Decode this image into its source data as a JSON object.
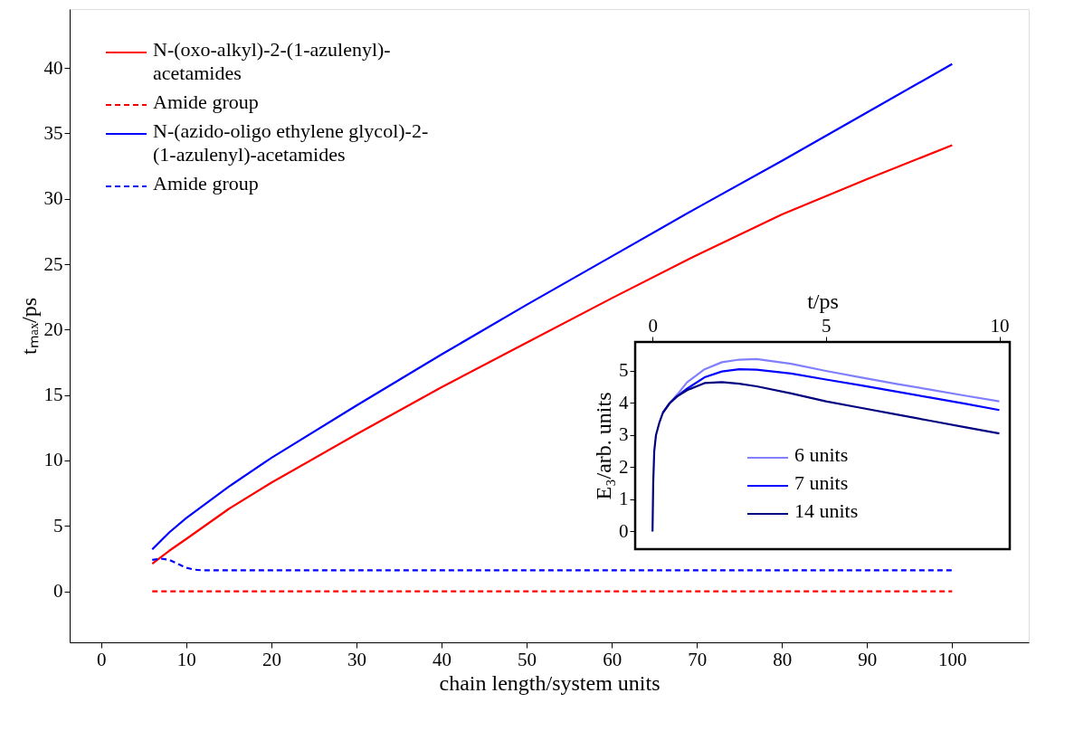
{
  "chart_data": [
    {
      "type": "line",
      "xlabel": "chain length/system units",
      "ylabel": "tₘₐₓ/ps",
      "xlim": [
        -3.7,
        109
      ],
      "ylim": [
        -3.9,
        44.5
      ],
      "xticks": [
        0,
        10,
        20,
        30,
        40,
        50,
        60,
        70,
        80,
        90,
        100
      ],
      "yticks": [
        0,
        5,
        10,
        15,
        20,
        25,
        30,
        35,
        40
      ],
      "legend": "top left",
      "series": [
        {
          "name": "N-(oxo-alkyl)-2-(1-azulenyl)-acetamides",
          "color": "#ff0000",
          "line_style": "solid",
          "x": [
            6,
            8,
            10,
            15,
            20,
            30,
            40,
            50,
            60,
            70,
            80,
            90,
            100
          ],
          "values": [
            2.1,
            3.1,
            4.0,
            6.3,
            8.3,
            12.0,
            15.6,
            19.0,
            22.4,
            25.7,
            28.8,
            31.5,
            34.1
          ]
        },
        {
          "name": "Amide group",
          "color": "#ff0000",
          "line_style": "dashed",
          "x": [
            6,
            100
          ],
          "values": [
            0,
            0
          ]
        },
        {
          "name": "N-(azido-oligo ethylene glycol)-2-(1-azulenyl)-acetamides",
          "color": "#0000ff",
          "line_style": "solid",
          "x": [
            6,
            8,
            10,
            15,
            20,
            30,
            40,
            50,
            60,
            70,
            80,
            90,
            100
          ],
          "values": [
            3.2,
            4.5,
            5.6,
            8.0,
            10.2,
            14.2,
            18.1,
            21.9,
            25.6,
            29.3,
            32.9,
            36.6,
            40.3
          ]
        },
        {
          "name": "Amide group",
          "color": "#0000ff",
          "line_style": "dashed",
          "x": [
            6,
            7,
            8,
            9,
            10,
            11,
            12,
            100
          ],
          "values": [
            2.4,
            2.5,
            2.4,
            2.1,
            1.8,
            1.65,
            1.6,
            1.6
          ]
        }
      ]
    },
    {
      "type": "line",
      "xlabel": "t/ps",
      "ylabel": "E₃/arb. units",
      "xlim": [
        -0.5,
        10.3
      ],
      "ylim": [
        -0.55,
        5.9
      ],
      "xticks": [
        0,
        5,
        10
      ],
      "yticks": [
        0,
        1,
        2,
        3,
        4,
        5
      ],
      "legend": "bottom",
      "series": [
        {
          "name": "6 units",
          "color": "#8080ff",
          "x": [
            0.3,
            0.5,
            0.7,
            1,
            1.5,
            2,
            2.5,
            3,
            4,
            5,
            6,
            7,
            8,
            9,
            10
          ],
          "values": [
            3.7,
            4.0,
            4.25,
            4.65,
            5.05,
            5.27,
            5.35,
            5.37,
            5.22,
            5.0,
            4.8,
            4.6,
            4.42,
            4.23,
            4.05
          ]
        },
        {
          "name": "7 units",
          "color": "#0000ff",
          "x": [
            0.3,
            0.5,
            0.7,
            1,
            1.5,
            2,
            2.5,
            3,
            4,
            5,
            6,
            7,
            8,
            9,
            10
          ],
          "values": [
            3.7,
            4.0,
            4.2,
            4.45,
            4.8,
            4.98,
            5.05,
            5.04,
            4.92,
            4.73,
            4.55,
            4.36,
            4.17,
            3.98,
            3.78
          ]
        },
        {
          "name": "14 units",
          "color": "#000080",
          "x": [
            0,
            0.02,
            0.05,
            0.1,
            0.2,
            0.3,
            0.5,
            0.7,
            1,
            1.5,
            2,
            2.5,
            3,
            4,
            5,
            6,
            7,
            8,
            9,
            10
          ],
          "values": [
            0,
            1.5,
            2.5,
            3.0,
            3.4,
            3.7,
            4.0,
            4.2,
            4.4,
            4.62,
            4.65,
            4.6,
            4.52,
            4.3,
            4.05,
            3.85,
            3.65,
            3.45,
            3.25,
            3.05
          ]
        }
      ]
    }
  ]
}
